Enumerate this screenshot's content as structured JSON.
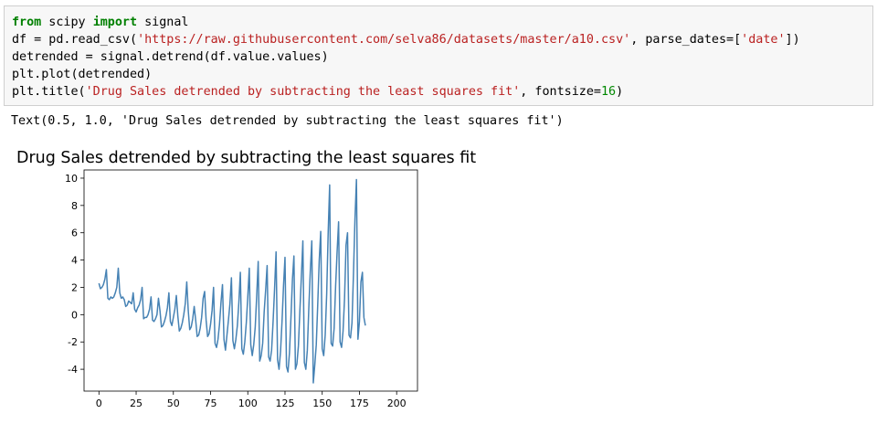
{
  "code_cell": {
    "lines": [
      [
        {
          "t": "from",
          "c": "kw"
        },
        {
          "t": " scipy ",
          "c": ""
        },
        {
          "t": "import",
          "c": "kw"
        },
        {
          "t": " signal",
          "c": ""
        }
      ],
      [
        {
          "t": "df = pd.read_csv(",
          "c": ""
        },
        {
          "t": "'https://raw.githubusercontent.com/selva86/datasets/master/a10.csv'",
          "c": "str"
        },
        {
          "t": ", parse_dates=[",
          "c": ""
        },
        {
          "t": "'date'",
          "c": "str"
        },
        {
          "t": "])",
          "c": ""
        }
      ],
      [
        {
          "t": "detrended = signal.detrend(df.value.values)",
          "c": ""
        }
      ],
      [
        {
          "t": "plt.plot(detrended)",
          "c": ""
        }
      ],
      [
        {
          "t": "plt.title(",
          "c": ""
        },
        {
          "t": "'Drug Sales detrended by subtracting the least squares fit'",
          "c": "str"
        },
        {
          "t": ", fontsize=",
          "c": ""
        },
        {
          "t": "16",
          "c": "num"
        },
        {
          "t": ")",
          "c": ""
        }
      ]
    ]
  },
  "output": {
    "text": "Text(0.5, 1.0, 'Drug Sales detrended by subtracting the least squares fit')"
  },
  "chart_data": {
    "type": "line",
    "title": "Drug Sales detrended by subtracting the least squares fit",
    "xlabel": "",
    "ylabel": "",
    "xlim": [
      -10,
      214
    ],
    "ylim": [
      -5.6,
      10.6
    ],
    "xticks": [
      0,
      25,
      50,
      75,
      100,
      125,
      150,
      175,
      200
    ],
    "yticks": [
      -4,
      -2,
      0,
      2,
      4,
      6,
      8,
      10
    ],
    "grid": false,
    "line_color": "#4682b4",
    "series": [
      {
        "values": [
          2.3,
          1.9,
          2.0,
          2.2,
          2.6,
          3.3,
          1.2,
          1.1,
          1.3,
          1.2,
          1.3,
          1.6,
          2.0,
          3.4,
          1.6,
          1.2,
          1.3,
          1.1,
          0.6,
          0.7,
          1.0,
          0.9,
          0.8,
          1.6,
          0.4,
          0.2,
          0.5,
          0.7,
          1.1,
          2.0,
          -0.3,
          -0.2,
          -0.2,
          0.0,
          0.4,
          1.3,
          -0.4,
          -0.5,
          -0.3,
          0.0,
          1.2,
          0.3,
          -0.9,
          -0.8,
          -0.5,
          -0.1,
          0.5,
          1.6,
          -0.5,
          -0.8,
          -0.2,
          0.4,
          1.4,
          -0.1,
          -1.2,
          -1.0,
          -0.6,
          0.0,
          0.8,
          2.4,
          0.3,
          -1.1,
          -0.9,
          -0.3,
          0.6,
          -0.4,
          -1.6,
          -1.5,
          -1.0,
          -0.2,
          1.2,
          1.7,
          -0.4,
          -1.6,
          -1.4,
          -0.7,
          0.3,
          2.0,
          -2.1,
          -2.4,
          -1.8,
          -0.7,
          0.9,
          2.2,
          -1.8,
          -2.6,
          -1.5,
          -0.4,
          0.8,
          2.7,
          -1.9,
          -2.5,
          -1.8,
          -0.8,
          0.9,
          3.1,
          -2.5,
          -2.9,
          -2.0,
          -0.6,
          1.3,
          3.4,
          -2.2,
          -3.0,
          -2.2,
          -0.9,
          1.4,
          3.9,
          -3.4,
          -3.0,
          -2.1,
          0.2,
          1.8,
          3.6,
          -3.1,
          -3.4,
          -2.6,
          -0.5,
          1.9,
          4.6,
          -3.3,
          -4.0,
          -2.7,
          -0.5,
          2.1,
          4.2,
          -3.8,
          -4.2,
          -2.8,
          -0.2,
          2.6,
          4.3,
          -4.0,
          -3.6,
          -2.3,
          0.3,
          2.8,
          5.4,
          -3.5,
          -4.0,
          -2.6,
          0.5,
          3.2,
          5.4,
          -5.0,
          -3.7,
          -2.2,
          0.8,
          4.0,
          6.1,
          -2.5,
          -3.0,
          -1.5,
          1.5,
          6.0,
          9.5,
          -2.1,
          -2.3,
          -1.0,
          2.1,
          4.6,
          6.8,
          -2.0,
          -2.4,
          -1.2,
          1.2,
          5.1,
          6.0,
          -1.5,
          -1.7,
          -0.6,
          3.0,
          7.0,
          9.9,
          -1.8,
          -0.5,
          2.4,
          3.1,
          -0.2,
          -0.8
        ]
      }
    ]
  }
}
